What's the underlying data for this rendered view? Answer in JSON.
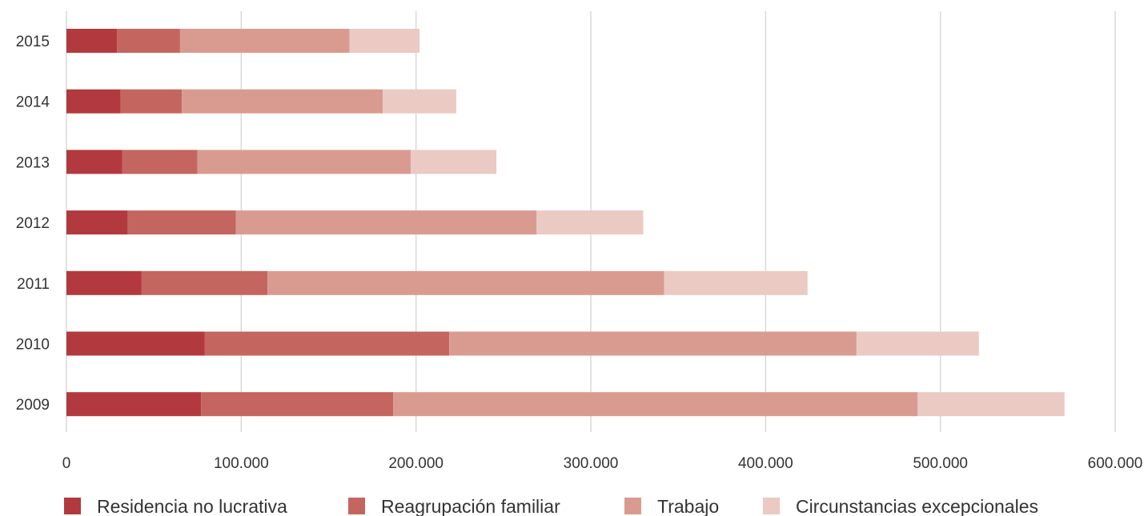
{
  "chart_data": {
    "type": "bar",
    "orientation": "horizontal",
    "stacked": true,
    "categories": [
      "2015",
      "2014",
      "2013",
      "2012",
      "2011",
      "2010",
      "2009"
    ],
    "series": [
      {
        "name": "Residencia no lucrativa",
        "color": "#b23a3e",
        "values": [
          29000,
          31000,
          32000,
          35000,
          43000,
          79000,
          77000
        ]
      },
      {
        "name": "Reagrupación familiar",
        "color": "#c4665f",
        "values": [
          36000,
          35000,
          43000,
          62000,
          72000,
          140000,
          110000
        ]
      },
      {
        "name": "Trabajo",
        "color": "#d99b90",
        "values": [
          97000,
          115000,
          122000,
          172000,
          227000,
          233000,
          300000
        ]
      },
      {
        "name": "Circunstancias excepcionales",
        "color": "#eacac3",
        "values": [
          40000,
          42000,
          49000,
          61000,
          82000,
          70000,
          84000
        ]
      }
    ],
    "x_ticks": [
      "0",
      "100.000",
      "200.000",
      "300.000",
      "400.000",
      "500.000",
      "600.000"
    ],
    "xlim": [
      0,
      600000
    ],
    "grid": "vertical",
    "legend_position": "bottom"
  }
}
